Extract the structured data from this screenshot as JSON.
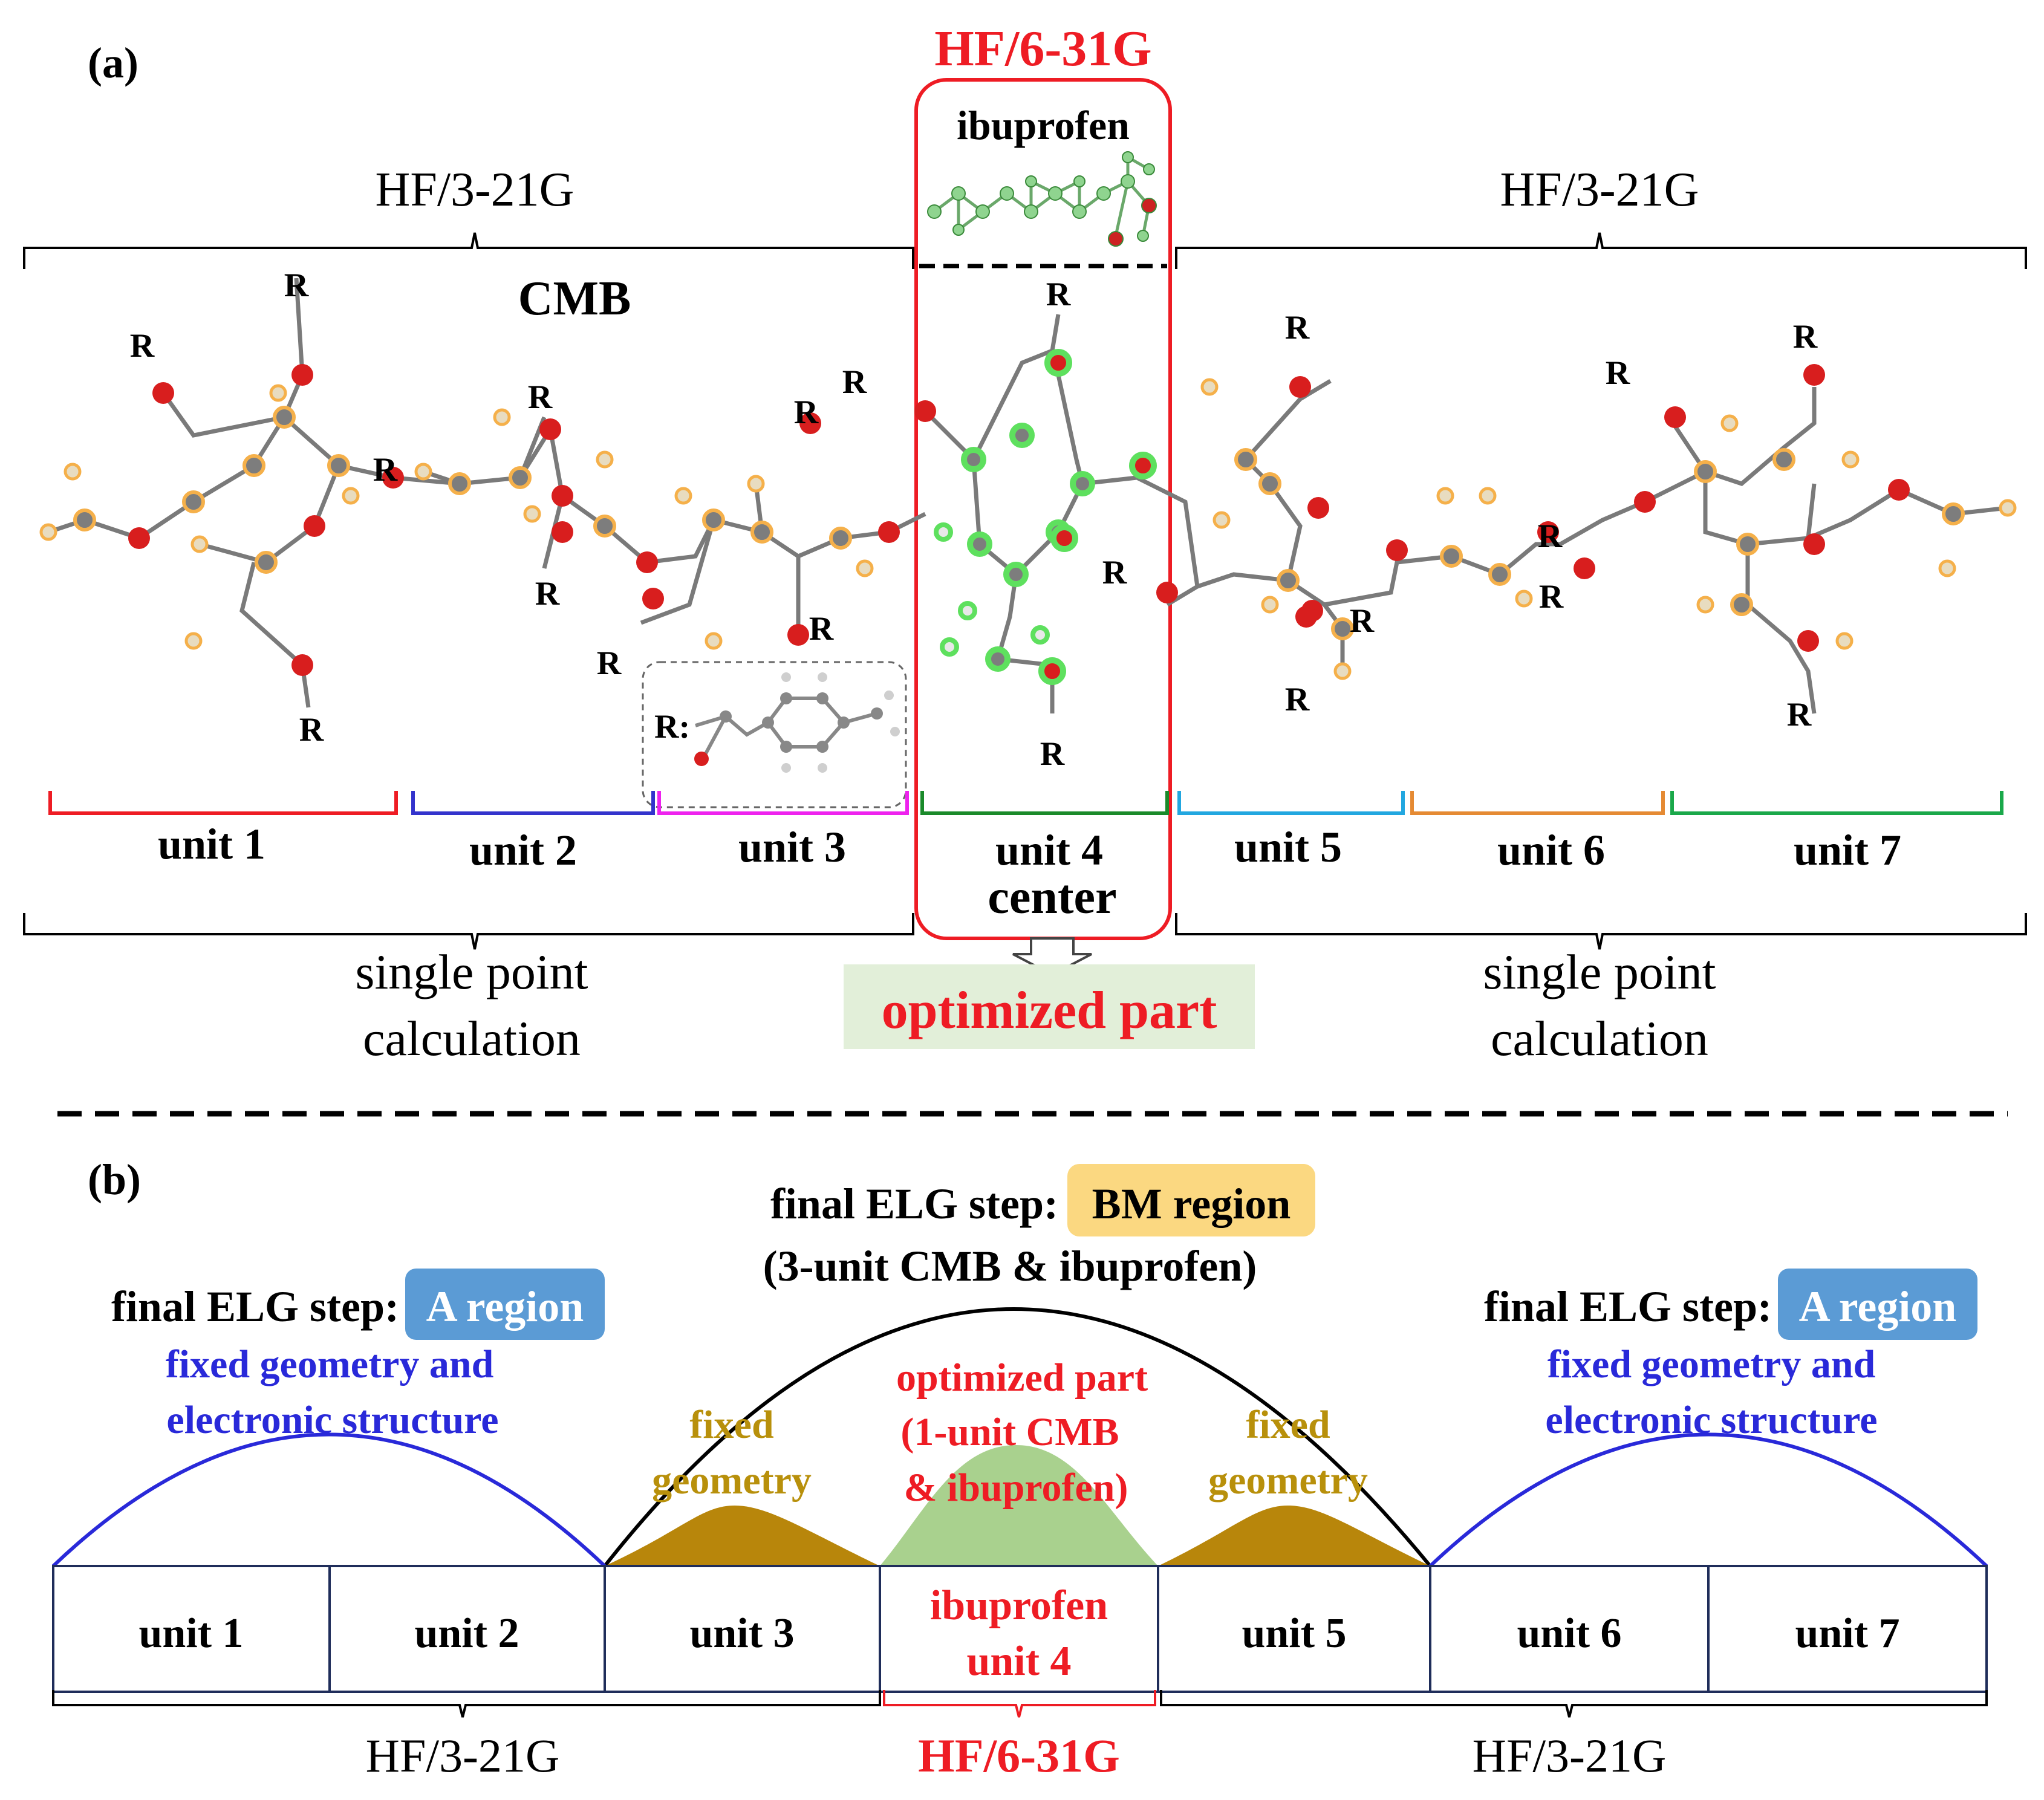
{
  "colors": {
    "red": "#ee1c24",
    "blue": "#2929d9",
    "gold": "#b8860b",
    "dark_gold": "#b8900b",
    "green_fill": "#a9d18e",
    "bm_bg": "#fbd881",
    "a_bg": "#5b9bd5",
    "opt_bg": "#e2efd9",
    "unit1": "#ee1c24",
    "unit2": "#3333cc",
    "unit3": "#ee22ee",
    "unit4": "#1a8a2a",
    "unit5": "#22a7e0",
    "unit6": "#e58a33",
    "unit7": "#1aa84a"
  },
  "panel_a": {
    "label": "(a)",
    "center_method": "HF/6-31G",
    "ibuprofen": "ibuprofen",
    "left_method": "HF/3-21G",
    "right_method": "HF/3-21G",
    "polymer": "CMB",
    "substituent": "R",
    "r_label": "R:",
    "units": [
      "unit 1",
      "unit 2",
      "unit 3",
      "unit 4",
      "unit 5",
      "unit 6",
      "unit 7"
    ],
    "center_word": "center",
    "left_calc": [
      "single point",
      "calculation"
    ],
    "right_calc": [
      "single point",
      "calculation"
    ],
    "optimized": "optimized part"
  },
  "panel_b": {
    "label": "(b)",
    "bm_prefix": "final ELG step:",
    "bm_badge": "BM region",
    "bm_sub": "(3-unit CMB & ibuprofen)",
    "a_prefix": "final ELG step:",
    "a_badge": "A region",
    "fixed_both": [
      "fixed geometry and",
      "electronic structure"
    ],
    "fixed_geom": [
      "fixed",
      "geometry"
    ],
    "opt_lines": [
      "optimized part",
      "(1-unit CMB",
      "& ibuprofen)"
    ],
    "units": [
      "unit 1",
      "unit 2",
      "unit 3",
      "",
      "unit 5",
      "unit 6",
      "unit 7"
    ],
    "center_cell": [
      "ibuprofen",
      "unit 4"
    ],
    "bottom_left": "HF/3-21G",
    "bottom_center": "HF/6-31G",
    "bottom_right": "HF/3-21G"
  }
}
